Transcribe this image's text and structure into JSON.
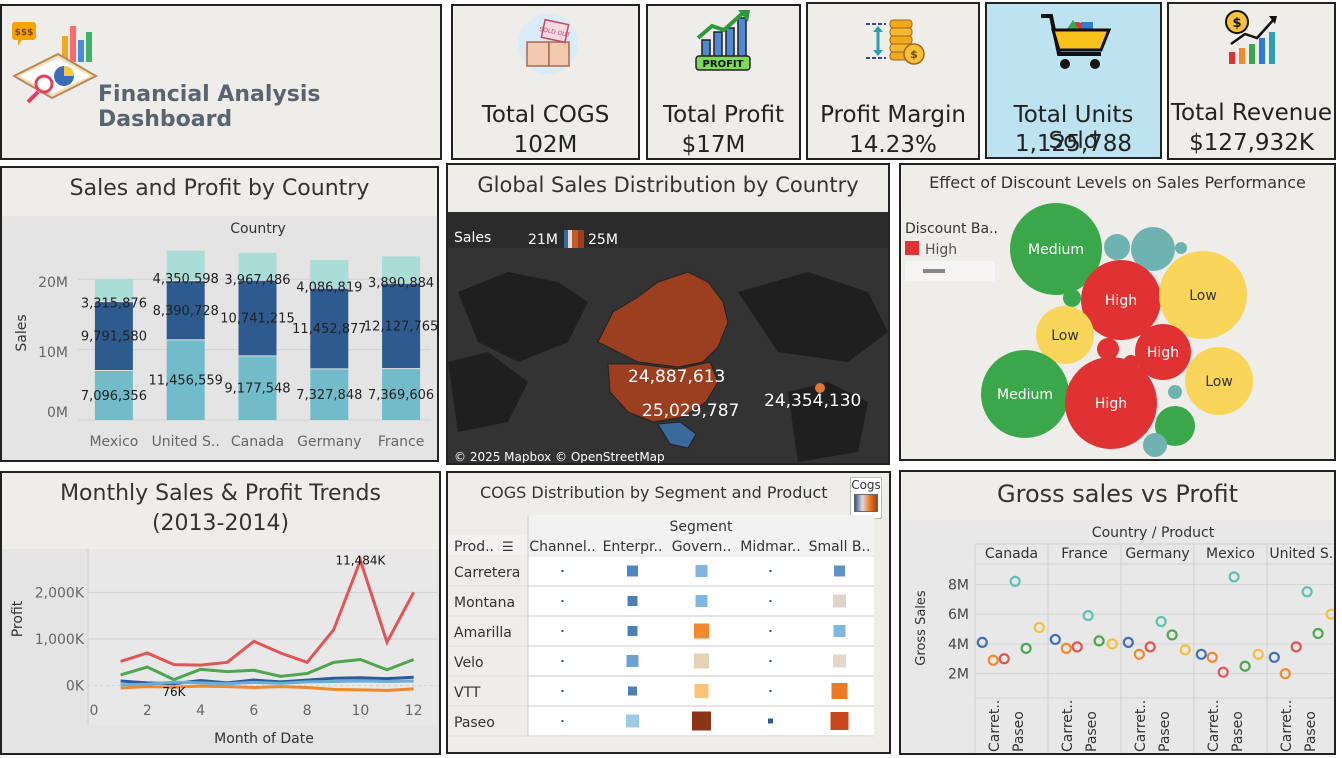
{
  "header": {
    "title": "Financial Analysis Dashboard"
  },
  "kpis": [
    {
      "name": "Total COGS",
      "value": "102M",
      "icon": "boxes-sold-out-icon"
    },
    {
      "name": "Total Profit",
      "value": "$17M",
      "icon": "profit-chart-icon"
    },
    {
      "name": "Profit Margin",
      "value": "14.23%",
      "icon": "coin-stack-icon"
    },
    {
      "name": "Total Units Sold",
      "value": "1,125,788",
      "icon": "shopping-cart-icon"
    },
    {
      "name": "Total Revenue",
      "value": "$127,932K",
      "icon": "revenue-growth-icon"
    }
  ],
  "colors": {
    "teal_light": "#a9ddd6",
    "teal_mid": "#72bcca",
    "navy": "#2e5b8f",
    "map_fill": "#9c3f20",
    "bubble_green": "#3aa84a",
    "bubble_red": "#e03232",
    "bubble_yellow": "#f9d55a",
    "bubble_teal": "#6fb3b0",
    "kpi_highlight": "#bde3f1"
  },
  "chart_data": [
    {
      "id": "sales-profit-country",
      "type": "bar",
      "title": "Sales and Profit by Country",
      "legend_title": "Country",
      "ylabel": "Sales",
      "yticks": [
        "0M",
        "10M",
        "20M"
      ],
      "categories": [
        "Mexico",
        "United S..",
        "Canada",
        "Germany",
        "France"
      ],
      "series": [
        {
          "values": [
            7096356,
            11456559,
            9177548,
            7327848,
            7369606
          ],
          "labels": [
            "7,096,356",
            "11,456,559",
            "9,177,548",
            "7,327,848",
            "7,369,606"
          ]
        },
        {
          "values": [
            9791580,
            8390728,
            10741215,
            11452877,
            12127765
          ],
          "labels": [
            "9,791,580",
            "8,390,728",
            "10,741,215",
            "11,452,877",
            "12,127,765"
          ]
        },
        {
          "values": [
            3315876,
            4350598,
            3967486,
            4086819,
            3890884
          ],
          "labels": [
            "3,315,876",
            "4,350,598",
            "3,967,486",
            "4,086,819",
            "3,890,884"
          ]
        }
      ],
      "ylim": [
        0,
        25000000
      ]
    },
    {
      "id": "global-sales-map",
      "type": "map",
      "title": "Global Sales Distribution by Country",
      "legend_title": "Sales",
      "legend_min": "21M",
      "legend_max": "25M",
      "labels": [
        "24,887,613",
        "25,029,787",
        "24,354,130"
      ],
      "attribution": "© 2025 Mapbox © OpenStreetMap"
    },
    {
      "id": "discount-bubbles",
      "type": "bubble",
      "title": "Effect of Discount Levels on Sales Performance",
      "legend_title": "Discount Ba..",
      "legend_items": [
        "High"
      ],
      "bubbles": [
        {
          "label": "Medium",
          "level": "Medium",
          "size": 46
        },
        {
          "label": "High",
          "level": "High",
          "size": 40
        },
        {
          "label": "Low",
          "level": "Low",
          "size": 44
        },
        {
          "label": "Low",
          "level": "Low",
          "size": 29
        },
        {
          "label": "High",
          "level": "High",
          "size": 28
        },
        {
          "label": "Medium",
          "level": "Medium",
          "size": 44
        },
        {
          "label": "High",
          "level": "High",
          "size": 46
        },
        {
          "label": "Low",
          "level": "Low",
          "size": 34
        }
      ]
    },
    {
      "id": "monthly-trends",
      "type": "line",
      "title_line1": "Monthly Sales & Profit Trends",
      "title_line2": "(2013-2014)",
      "xlabel": "Month of Date",
      "ylabel": "Profit",
      "x": [
        1,
        2,
        3,
        4,
        5,
        6,
        7,
        8,
        9,
        10,
        11,
        12
      ],
      "xticks": [
        "0",
        "2",
        "4",
        "6",
        "8",
        "10",
        "12"
      ],
      "yticks": [
        "0K",
        "1,000K",
        "2,000K"
      ],
      "ylim": [
        -500,
        2800
      ],
      "xlim": [
        0,
        12.5
      ],
      "series": [
        {
          "color": "#e05555",
          "values": [
            520,
            700,
            450,
            440,
            500,
            950,
            700,
            500,
            1200,
            2684,
            930,
            2000
          ]
        },
        {
          "color": "#4fa64f",
          "values": [
            230,
            400,
            130,
            350,
            300,
            330,
            200,
            260,
            500,
            560,
            340,
            560
          ]
        },
        {
          "color": "#2c5b9a",
          "values": [
            100,
            60,
            40,
            110,
            60,
            120,
            80,
            120,
            160,
            170,
            150,
            180
          ]
        },
        {
          "color": "#6aaed6",
          "values": [
            20,
            30,
            76,
            60,
            40,
            70,
            50,
            80,
            90,
            100,
            90,
            100
          ]
        },
        {
          "color": "#f0882e",
          "values": [
            -50,
            -20,
            -30,
            -10,
            -20,
            -40,
            -20,
            -40,
            -80,
            -90,
            -100,
            -70
          ]
        }
      ],
      "annotations": [
        {
          "text": "11,484K"
        },
        {
          "text": "76K"
        }
      ]
    },
    {
      "id": "cogs-heatmap",
      "type": "heatmap",
      "title": "COGS Distribution by Segment and Product",
      "legend_title": "Cogs",
      "column_header": "Segment",
      "row_header": "Prod..",
      "columns": [
        "Channel..",
        "Enterpr..",
        "Govern..",
        "Midmar..",
        "Small B.."
      ],
      "rows": [
        "Carretera",
        "Montana",
        "Amarilla",
        "Velo",
        "VTT",
        "Paseo"
      ],
      "cells": [
        [
          {
            "s": 2,
            "c": "#2e5b8f"
          },
          {
            "s": 11,
            "c": "#4a86c0"
          },
          {
            "s": 12,
            "c": "#7fb7e0"
          },
          {
            "s": 2,
            "c": "#2e5b8f"
          },
          {
            "s": 11,
            "c": "#5b93c8"
          }
        ],
        [
          {
            "s": 2,
            "c": "#2e5b8f"
          },
          {
            "s": 10,
            "c": "#4a7fb8"
          },
          {
            "s": 12,
            "c": "#7fb7e0"
          },
          {
            "s": 2,
            "c": "#2e5b8f"
          },
          {
            "s": 13,
            "c": "#dcd6c8"
          }
        ],
        [
          {
            "s": 2,
            "c": "#2e5b8f"
          },
          {
            "s": 10,
            "c": "#4a7fb8"
          },
          {
            "s": 15,
            "c": "#f08a2c"
          },
          {
            "s": 2,
            "c": "#2e5b8f"
          },
          {
            "s": 12,
            "c": "#7fb7e0"
          }
        ],
        [
          {
            "s": 2,
            "c": "#2e5b8f"
          },
          {
            "s": 12,
            "c": "#6aa3d2"
          },
          {
            "s": 15,
            "c": "#e4d2b6"
          },
          {
            "s": 2,
            "c": "#2e5b8f"
          },
          {
            "s": 13,
            "c": "#e4d6c8"
          }
        ],
        [
          {
            "s": 2,
            "c": "#2e5b8f"
          },
          {
            "s": 9,
            "c": "#4a7fb8"
          },
          {
            "s": 14,
            "c": "#fbc47a"
          },
          {
            "s": 2,
            "c": "#2e5b8f"
          },
          {
            "s": 16,
            "c": "#ec7a22"
          }
        ],
        [
          {
            "s": 2,
            "c": "#2e5b8f"
          },
          {
            "s": 13,
            "c": "#9ccbe8"
          },
          {
            "s": 19,
            "c": "#8c3418"
          },
          {
            "s": 5,
            "c": "#2e5b8f"
          },
          {
            "s": 18,
            "c": "#c84a1c"
          }
        ]
      ]
    },
    {
      "id": "gross-sales-profit",
      "type": "scatter",
      "title": "Gross sales vs Profit",
      "header": "Country / Product",
      "ylabel": "Gross Sales",
      "yticks": [
        "2M",
        "4M",
        "6M",
        "8M"
      ],
      "ylim": [
        0.5,
        9.5
      ],
      "countries": [
        "Canada",
        "France",
        "Germany",
        "Mexico",
        "United S.."
      ],
      "product_ticks": [
        "Carret..",
        "Paseo"
      ],
      "points": [
        [
          {
            "x": 0.1,
            "y": 4.1,
            "c": "#3f6fb4"
          },
          {
            "x": 0.25,
            "y": 2.9,
            "c": "#f08a2c"
          },
          {
            "x": 0.4,
            "y": 3.0,
            "c": "#e05555"
          },
          {
            "x": 0.55,
            "y": 8.2,
            "c": "#5fc1b1"
          },
          {
            "x": 0.7,
            "y": 3.7,
            "c": "#4fa64f"
          },
          {
            "x": 0.88,
            "y": 5.1,
            "c": "#f5c040"
          }
        ],
        [
          {
            "x": 0.1,
            "y": 4.3,
            "c": "#3f6fb4"
          },
          {
            "x": 0.25,
            "y": 3.7,
            "c": "#f08a2c"
          },
          {
            "x": 0.4,
            "y": 3.8,
            "c": "#e05555"
          },
          {
            "x": 0.55,
            "y": 5.9,
            "c": "#5fc1b1"
          },
          {
            "x": 0.7,
            "y": 4.2,
            "c": "#4fa64f"
          },
          {
            "x": 0.88,
            "y": 4.0,
            "c": "#f5c040"
          }
        ],
        [
          {
            "x": 0.1,
            "y": 4.1,
            "c": "#3f6fb4"
          },
          {
            "x": 0.25,
            "y": 3.3,
            "c": "#f08a2c"
          },
          {
            "x": 0.4,
            "y": 3.8,
            "c": "#e05555"
          },
          {
            "x": 0.55,
            "y": 5.5,
            "c": "#5fc1b1"
          },
          {
            "x": 0.7,
            "y": 4.6,
            "c": "#4fa64f"
          },
          {
            "x": 0.88,
            "y": 3.6,
            "c": "#f5c040"
          }
        ],
        [
          {
            "x": 0.1,
            "y": 3.3,
            "c": "#3f6fb4"
          },
          {
            "x": 0.25,
            "y": 3.1,
            "c": "#f08a2c"
          },
          {
            "x": 0.4,
            "y": 2.1,
            "c": "#e05555"
          },
          {
            "x": 0.55,
            "y": 8.5,
            "c": "#5fc1b1"
          },
          {
            "x": 0.7,
            "y": 2.5,
            "c": "#4fa64f"
          },
          {
            "x": 0.88,
            "y": 3.3,
            "c": "#f5c040"
          }
        ],
        [
          {
            "x": 0.1,
            "y": 3.1,
            "c": "#3f6fb4"
          },
          {
            "x": 0.25,
            "y": 2.0,
            "c": "#f08a2c"
          },
          {
            "x": 0.4,
            "y": 3.8,
            "c": "#e05555"
          },
          {
            "x": 0.55,
            "y": 7.5,
            "c": "#5fc1b1"
          },
          {
            "x": 0.7,
            "y": 4.7,
            "c": "#4fa64f"
          },
          {
            "x": 0.88,
            "y": 6.0,
            "c": "#f5c040"
          }
        ]
      ]
    }
  ]
}
